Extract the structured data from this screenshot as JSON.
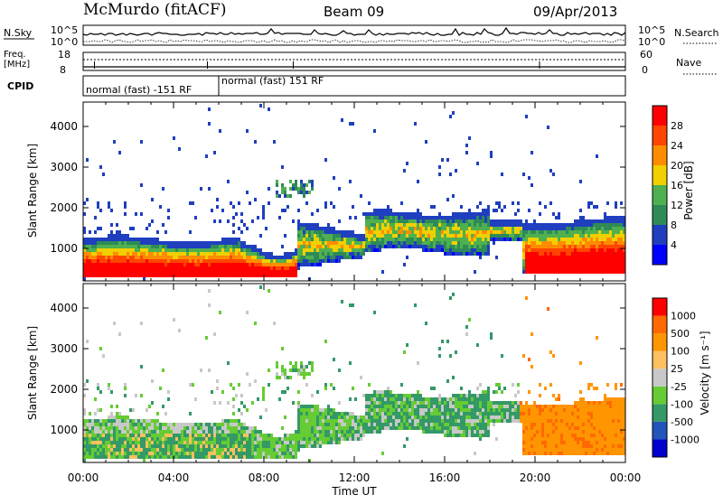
{
  "header": {
    "station": "McMurdo (fitACF)",
    "beam": "Beam 09",
    "date": "09/Apr/2013"
  },
  "noise_panel": {
    "left_label": "N.Sky",
    "right_label": "N.Search",
    "left_ticks": [
      "10^5",
      "10^0"
    ],
    "right_ticks": [
      "10^5",
      "10^0"
    ]
  },
  "freq_panel": {
    "left_label_line1": "Freq.",
    "left_label_line2": "[MHz]",
    "right_label": "Nave",
    "left_ticks": [
      "18",
      "8"
    ],
    "right_ticks": [
      "60",
      "0"
    ]
  },
  "cpid_panel": {
    "label": "CPID",
    "segments": [
      {
        "start_hour": 0,
        "end_hour": 6,
        "text": "normal (fast) -151 RF"
      },
      {
        "start_hour": 6,
        "end_hour": 24,
        "text": "normal (fast) 151 RF"
      }
    ]
  },
  "colors": {
    "power": [
      "#0000ff",
      "#1f3fbf",
      "#2e8b57",
      "#4fb04f",
      "#f0d000",
      "#ff8c00",
      "#ff4500",
      "#ff0000"
    ],
    "velocity": [
      "#ff0000",
      "#ff6a00",
      "#ff9500",
      "#ffc060",
      "#c8c8c8",
      "#66cc33",
      "#339966",
      "#2255bb",
      "#0000cc"
    ]
  },
  "chart_data": [
    {
      "type": "heatmap",
      "name": "power",
      "ylabel": "Slant Range [km]",
      "xlabel": "",
      "ylim": [
        200,
        4600
      ],
      "xlim_hours": [
        0,
        24
      ],
      "yticks": [
        "1000",
        "2000",
        "3000",
        "4000"
      ],
      "colorbar_label": "Power [dB]",
      "colorbar_ticks": [
        "4",
        "8",
        "12",
        "16",
        "20",
        "24",
        "28"
      ],
      "colorbar_range": [
        0,
        32
      ]
    },
    {
      "type": "heatmap",
      "name": "velocity",
      "ylabel": "Slant Range [km]",
      "xlabel": "Time UT",
      "ylim": [
        200,
        4600
      ],
      "xlim_hours": [
        0,
        24
      ],
      "xticks": [
        "00:00",
        "04:00",
        "08:00",
        "12:00",
        "16:00",
        "20:00",
        "00:00"
      ],
      "yticks": [
        "1000",
        "2000",
        "3000",
        "4000"
      ],
      "colorbar_label": "Velocity [m s⁻¹]",
      "colorbar_ticks": [
        "1000",
        "500",
        "100",
        "25",
        "-25",
        "-100",
        "-500",
        "-1000"
      ]
    }
  ]
}
